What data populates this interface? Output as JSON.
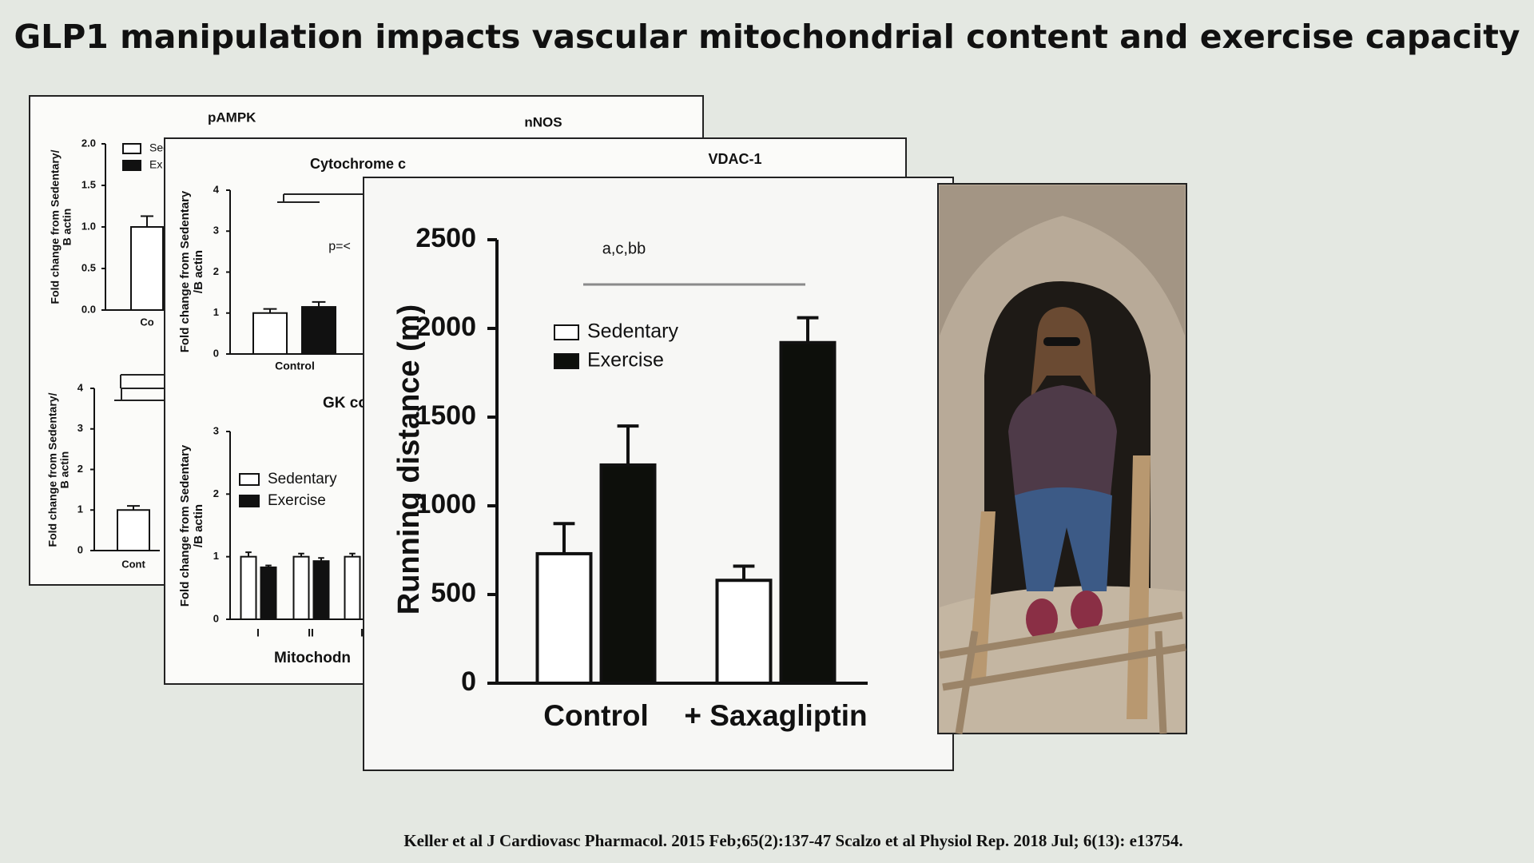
{
  "title": "GLP1 manipulation impacts vascular mitochondrial content and exercise capacity",
  "citation": "Keller et al  J Cardiovasc Pharmacol. 2015 Feb;65(2):137-47  Scalzo et al Physiol Rep. 2018 Jul; 6(13): e13754.",
  "chart_data": [
    {
      "type": "bar",
      "title": "pAMPK",
      "ylabel": [
        "Fold change from Sedentary/",
        "B actin"
      ],
      "ylim": [
        0,
        2
      ],
      "yticks": [
        {
          "value": 0,
          "label": "0.0"
        },
        0.5,
        {
          "value": 1,
          "label": "1.0"
        },
        1.5,
        {
          "value": 2,
          "label": "2.0"
        }
      ],
      "categories": [
        "Co"
      ],
      "series": [
        {
          "name": "Sed",
          "color": "#ffffff",
          "values": [
            1.0
          ],
          "errors": [
            0.13
          ]
        },
        {
          "name": "Ex",
          "color": "#111111",
          "values": [
            null
          ],
          "errors": [
            null
          ]
        }
      ]
    },
    {
      "type": "bar",
      "title": "nNOS"
    },
    {
      "type": "bar",
      "ylabel": [
        "Fold change from Sedentary/",
        "B actin"
      ],
      "ylim": [
        0,
        4
      ],
      "yticks": [
        0,
        1,
        2,
        3,
        4
      ],
      "categories": [
        "Cont"
      ],
      "series": [
        {
          "color": "#ffffff",
          "values": [
            1.0
          ],
          "errors": [
            0.1
          ]
        }
      ]
    },
    {
      "type": "bar",
      "title": "Cytochrome c",
      "ylabel": [
        "Fold change from Sedentary",
        "/B actin"
      ],
      "ylim": [
        0,
        4
      ],
      "yticks": [
        0,
        1,
        2,
        3,
        4
      ],
      "categories": [
        "Control"
      ],
      "annotation": "p=<",
      "series": [
        {
          "color": "#ffffff",
          "values": [
            1.0
          ],
          "errors": [
            0.1
          ]
        },
        {
          "color": "#111111",
          "values": [
            1.15
          ],
          "errors": [
            0.12
          ]
        }
      ]
    },
    {
      "type": "bar",
      "title": "VDAC-1"
    },
    {
      "type": "bar",
      "title": "GK co",
      "ylabel": [
        "Fold change from Sedentary",
        "/B actin"
      ],
      "xlabel": "Mitochodn",
      "ylim": [
        0,
        3
      ],
      "yticks": [
        0,
        1,
        2,
        3
      ],
      "categories": [
        "I",
        "II",
        "I"
      ],
      "series": [
        {
          "name": "Sedentary",
          "color": "#ffffff",
          "values": [
            1.0,
            1.0,
            1.0
          ],
          "errors": [
            0.07,
            0.05,
            0.05
          ]
        },
        {
          "name": "Exercise",
          "color": "#111111",
          "values": [
            0.83,
            0.93,
            null
          ],
          "errors": [
            0.03,
            0.05,
            null
          ]
        }
      ]
    },
    {
      "type": "bar",
      "ylabel": [
        "Running distance (m)"
      ],
      "annotation": "a,c,bb",
      "ylim": [
        0,
        2500
      ],
      "yticks": [
        0,
        500,
        1000,
        1500,
        2000,
        2500
      ],
      "categories": [
        "Control",
        "+ Saxagliptin"
      ],
      "series": [
        {
          "name": "Sedentary",
          "color": "#ffffff",
          "values": [
            730,
            580
          ],
          "errors": [
            170,
            80
          ]
        },
        {
          "name": "Exercise",
          "color": "#0d0f0b",
          "values": [
            1230,
            1920
          ],
          "errors": [
            220,
            140
          ]
        }
      ]
    }
  ]
}
